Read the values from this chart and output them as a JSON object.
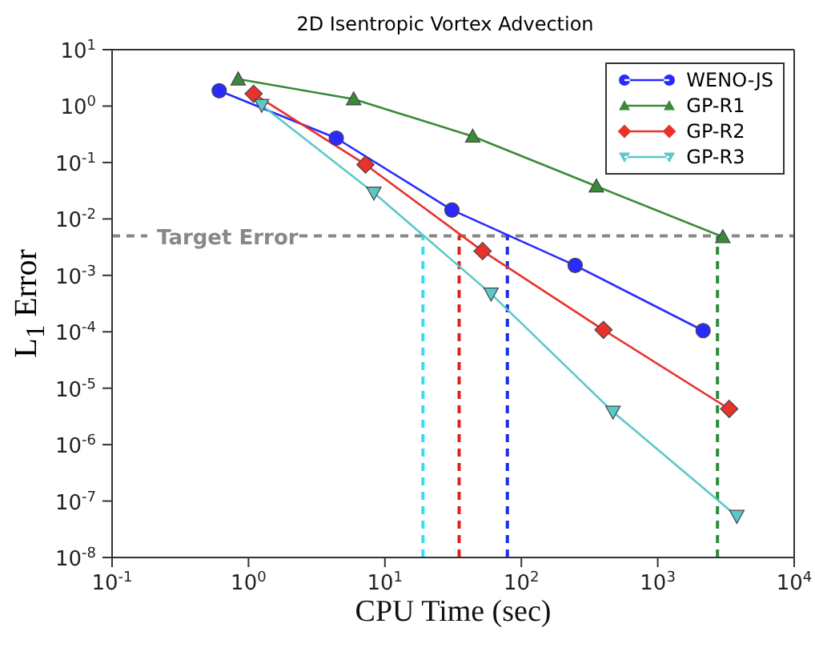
{
  "chart_data": {
    "type": "line",
    "title": "2D Isentropic Vortex Advection",
    "xlabel": "CPU Time (sec)",
    "ylabel": "L$_{1}$ Error",
    "log": "xy",
    "grid": false,
    "legend": "top right",
    "line_style": "solid",
    "xlim": [
      0.1,
      10000
    ],
    "ylim": [
      1e-08,
      10
    ],
    "xticks": [
      {
        "value": 0.1,
        "label": "10$^{-1}$"
      },
      {
        "value": 1,
        "label": "10$^{0}$"
      },
      {
        "value": 10,
        "label": "10$^{1}$"
      },
      {
        "value": 100,
        "label": "10$^{2}$"
      },
      {
        "value": 1000,
        "label": "10$^{3}$"
      },
      {
        "value": 10000,
        "label": "10$^{4}$"
      }
    ],
    "yticks": [
      {
        "value": 1e-08,
        "label": "10$^{-8}$"
      },
      {
        "value": 1e-07,
        "label": "10$^{-7}$"
      },
      {
        "value": 1e-06,
        "label": "10$^{-6}$"
      },
      {
        "value": 1e-05,
        "label": "10$^{-5}$"
      },
      {
        "value": 0.0001,
        "label": "10$^{-4}$"
      },
      {
        "value": 0.001,
        "label": "10$^{-3}$"
      },
      {
        "value": 0.01,
        "label": "10$^{-2}$"
      },
      {
        "value": 0.1,
        "label": "10$^{-1}$"
      },
      {
        "value": 1,
        "label": "10$^{0}$"
      },
      {
        "value": 10,
        "label": "10$^{1}$"
      }
    ],
    "series": [
      {
        "name": "WENO-JS",
        "color": "#2a2aff",
        "marker": "circle",
        "x": [
          0.61,
          4.4,
          31,
          248,
          2150
        ],
        "values": [
          1.87,
          0.27,
          0.0144,
          0.0015,
          0.000105
        ]
      },
      {
        "name": "GP-R1",
        "color": "#3a8a3a",
        "marker": "triangle",
        "x": [
          0.84,
          5.9,
          44,
          355,
          3000
        ],
        "values": [
          3.0,
          1.33,
          0.29,
          0.038,
          0.0048
        ]
      },
      {
        "name": "GP-R2",
        "color": "#e8322a",
        "marker": "diamond",
        "x": [
          1.09,
          7.2,
          52,
          400,
          3340
        ],
        "values": [
          1.65,
          0.092,
          0.0027,
          0.000108,
          4.3e-06
        ]
      },
      {
        "name": "GP-R3",
        "color": "#5bc8c8",
        "marker": "triangle-down",
        "x": [
          1.25,
          8.3,
          60,
          470,
          3800
        ],
        "values": [
          1.04,
          0.029,
          0.00047,
          3.8e-06,
          5.4e-08
        ]
      }
    ],
    "ref_lines": [
      {
        "axis": "y",
        "value": 0.005,
        "label": "Target Error",
        "color": "#888888",
        "line_style": "dashed"
      },
      {
        "axis": "x",
        "value": 19,
        "color": "#33e0f0",
        "line_style": "dashed"
      },
      {
        "axis": "x",
        "value": 35,
        "color": "#dd2222",
        "line_style": "dashed"
      },
      {
        "axis": "x",
        "value": 79,
        "color": "#1a2ee8",
        "line_style": "dashed"
      },
      {
        "axis": "x",
        "value": 2740,
        "color": "#2e8b3e",
        "line_style": "dashed"
      }
    ]
  }
}
